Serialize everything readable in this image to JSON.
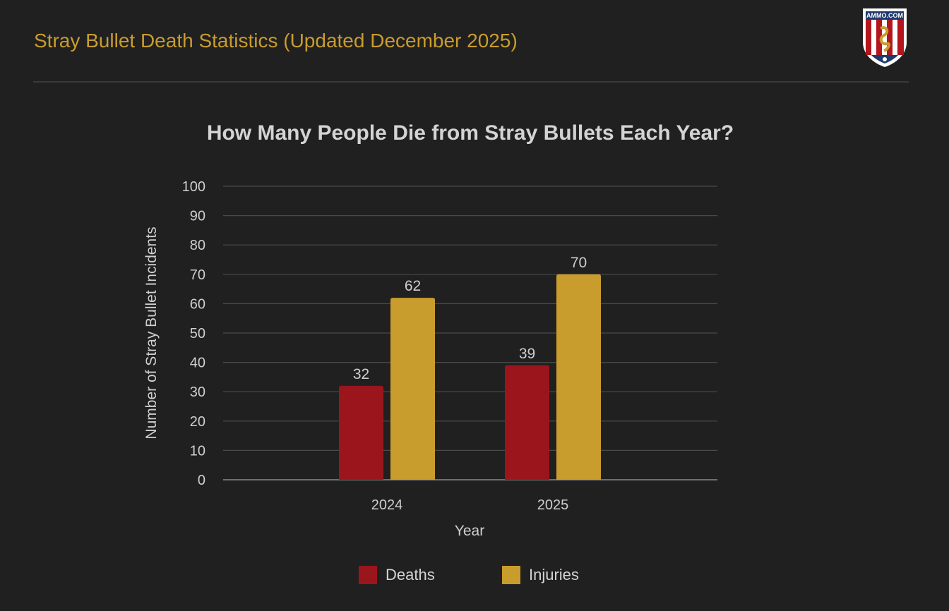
{
  "header": {
    "title": "Stray Bullet Death Statistics (Updated December 2025)",
    "logo_text": "AMMO.COM",
    "logo_icon": "snake-shield-icon"
  },
  "colors": {
    "background": "#202020",
    "accent": "#c99c2e",
    "deaths": "#9b161c",
    "injuries": "#c99c2e",
    "grid": "#4a4a4a",
    "text": "#cfcfcf"
  },
  "chart_data": {
    "type": "bar",
    "title": "How Many People Die from Stray Bullets Each Year?",
    "xlabel": "Year",
    "ylabel": "Number of Stray Bullet Incidents",
    "categories": [
      "2024",
      "2025"
    ],
    "series": [
      {
        "name": "Deaths",
        "values": [
          32,
          39
        ]
      },
      {
        "name": "Injuries",
        "values": [
          62,
          70
        ]
      }
    ],
    "ylim": [
      0,
      100
    ],
    "yticks": [
      0,
      10,
      20,
      30,
      40,
      50,
      60,
      70,
      80,
      90,
      100
    ],
    "grid": true,
    "legend_position": "bottom",
    "data_labels": true
  }
}
